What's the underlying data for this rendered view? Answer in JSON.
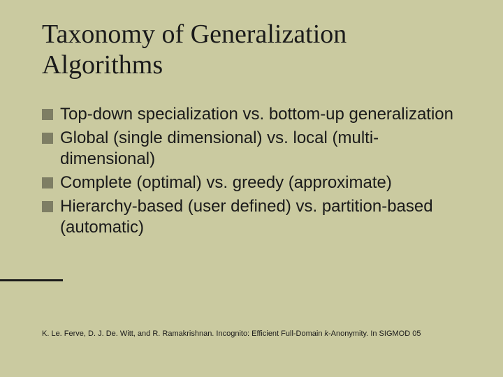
{
  "background_color": "#cacaa0",
  "bullet_color": "#7e7e64",
  "text_color": "#1a1a1a",
  "title_font": "Times New Roman",
  "body_font": "Arial",
  "title_fontsize": 38,
  "body_fontsize": 24,
  "citation_fontsize": 11,
  "title": "Taxonomy of Generalization Algorithms",
  "bullets": [
    "Top-down specialization vs. bottom-up generalization",
    "Global (single dimensional) vs. local (multi-dimensional)",
    "Complete (optimal) vs. greedy (approximate)",
    "Hierarchy-based (user defined) vs. partition-based (automatic)"
  ],
  "citation_prefix": "K. Le. Ferve, D. J. De. Witt, and R. Ramakrishnan. Incognito: Efficient Full-Domain ",
  "citation_ital": "k",
  "citation_suffix": "-Anonymity. In SIGMOD 05"
}
